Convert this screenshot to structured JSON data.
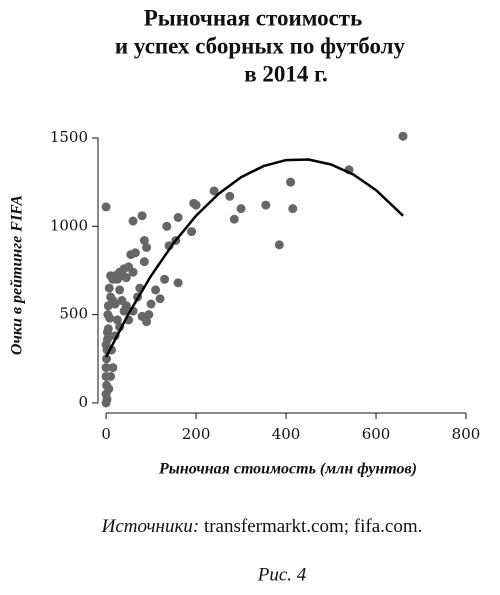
{
  "chart_data": {
    "type": "scatter",
    "title": [
      "Рыночная стоимость",
      "и успех сборных по футболу",
      "в 2014 г."
    ],
    "x_label": "Рыночная стоимость (млн фунтов)",
    "y_label": "Очки в рейтинге FIFA",
    "x": [
      660,
      540,
      410,
      415,
      385,
      355,
      300,
      285,
      275,
      240,
      200,
      195,
      190,
      160,
      155,
      140,
      135,
      160,
      120,
      110,
      100,
      95,
      85,
      85,
      80,
      90,
      75,
      70,
      60,
      65,
      60,
      55,
      50,
      45,
      40,
      35,
      30,
      25,
      20,
      15,
      10,
      0,
      5,
      10,
      15,
      20,
      25,
      30,
      35,
      40,
      45,
      8,
      5,
      3,
      2,
      1,
      0,
      0,
      1,
      0,
      2,
      0,
      3,
      12,
      15,
      20,
      10,
      6,
      0,
      4,
      7,
      50,
      60,
      130,
      80,
      90,
      30
    ],
    "values": [
      1510,
      1320,
      1250,
      1100,
      895,
      1120,
      1100,
      1040,
      1170,
      1200,
      1120,
      1130,
      970,
      1050,
      920,
      890,
      1000,
      680,
      590,
      640,
      560,
      500,
      800,
      920,
      1060,
      880,
      650,
      600,
      1030,
      850,
      740,
      840,
      770,
      710,
      760,
      720,
      740,
      700,
      720,
      700,
      720,
      1110,
      550,
      600,
      580,
      560,
      470,
      640,
      580,
      520,
      550,
      480,
      420,
      360,
      300,
      250,
      200,
      150,
      100,
      50,
      20,
      0,
      400,
      300,
      200,
      380,
      150,
      80,
      330,
      500,
      650,
      470,
      520,
      700,
      490,
      460,
      430
    ],
    "color": "#666666",
    "fit": {
      "x": [
        0,
        50,
        100,
        150,
        200,
        250,
        300,
        350,
        400,
        450,
        500,
        550,
        600,
        660
      ],
      "values": [
        260,
        505,
        720,
        905,
        1060,
        1184,
        1278,
        1341,
        1375,
        1378,
        1350,
        1293,
        1205,
        1060
      ],
      "color": "#000000"
    },
    "xlim": [
      -18,
      800
    ],
    "ylim": [
      -57,
      1500
    ],
    "xticks": [
      0,
      200,
      400,
      600,
      800
    ],
    "yticks": [
      0,
      500,
      1000,
      1500
    ],
    "grid": false,
    "source_label": "Источники:",
    "source_text": "transfermarkt.com; fifa.com.",
    "caption": "Рис. 4"
  }
}
